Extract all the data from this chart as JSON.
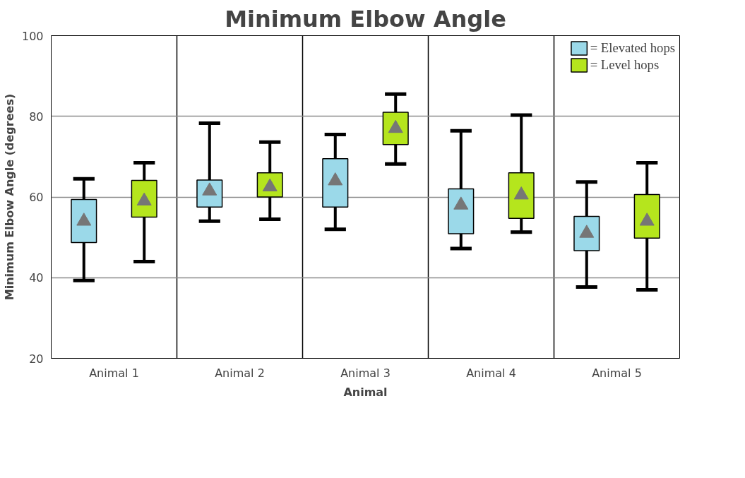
{
  "chart_data": {
    "type": "box",
    "title": "Minimum Elbow Angle",
    "xlabel": "Animal",
    "ylabel": "Minimum Elbow Angle (degrees)",
    "categories": [
      "Animal 1",
      "Animal 2",
      "Animal 3",
      "Animal 4",
      "Animal 5"
    ],
    "ylim": [
      20,
      100
    ],
    "yticks": [
      20,
      40,
      60,
      80,
      100
    ],
    "grid": true,
    "legend": "top right",
    "marker": "triangle",
    "series": [
      {
        "name": "= Elevated hops",
        "color": "#9bd9e9",
        "boxes": [
          {
            "low": 39.3,
            "q1": 48.7,
            "q3": 59.4,
            "high": 64.5,
            "mean": 54
          },
          {
            "low": 54,
            "q1": 57.5,
            "q3": 64.2,
            "high": 78.3,
            "mean": 61.5
          },
          {
            "low": 52,
            "q1": 57.5,
            "q3": 69.5,
            "high": 75.5,
            "mean": 64
          },
          {
            "low": 47.2,
            "q1": 50.9,
            "q3": 62,
            "high": 76.4,
            "mean": 58
          },
          {
            "low": 37.7,
            "q1": 46.7,
            "q3": 55.2,
            "high": 63.7,
            "mean": 51
          }
        ]
      },
      {
        "name": "= Level hops",
        "color": "#b5e51d",
        "boxes": [
          {
            "low": 44,
            "q1": 55,
            "q3": 64.1,
            "high": 68.5,
            "mean": 59
          },
          {
            "low": 54.5,
            "q1": 60,
            "q3": 66,
            "high": 73.6,
            "mean": 62.5
          },
          {
            "low": 68.2,
            "q1": 73,
            "q3": 81,
            "high": 85.5,
            "mean": 77
          },
          {
            "low": 51.3,
            "q1": 54.7,
            "q3": 66,
            "high": 80.3,
            "mean": 60.5
          },
          {
            "low": 37,
            "q1": 49.8,
            "q3": 60.6,
            "high": 68.5,
            "mean": 54
          }
        ]
      }
    ]
  }
}
